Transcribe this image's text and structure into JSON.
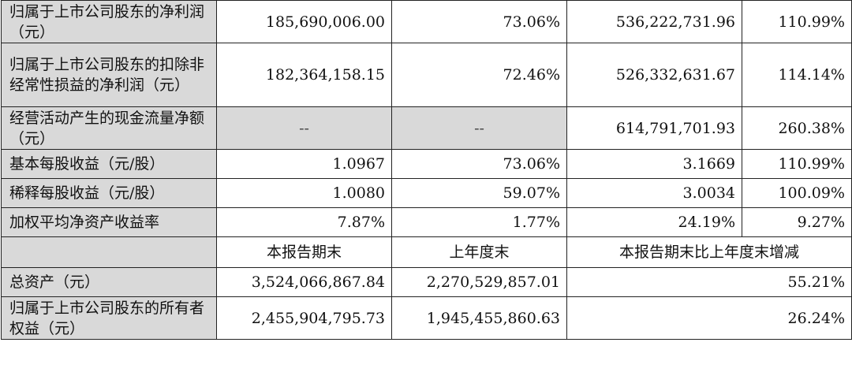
{
  "rows": [
    {
      "label": "归属于上市公司股东的净利润（元）",
      "v1": "185,690,006.00",
      "v2": "73.06%",
      "v3": "536,222,731.96",
      "v4": "110.99%"
    },
    {
      "label": "归属于上市公司股东的扣除非经常性损益的净利润（元）",
      "v1": "182,364,158.15",
      "v2": "72.46%",
      "v3": "526,332,631.67",
      "v4": "114.14%"
    },
    {
      "label": "经营活动产生的现金流量净额（元）",
      "v1": "--",
      "v2": "--",
      "v3": "614,791,701.93",
      "v4": "260.38%"
    },
    {
      "label": "基本每股收益（元/股）",
      "v1": "1.0967",
      "v2": "73.06%",
      "v3": "3.1669",
      "v4": "110.99%"
    },
    {
      "label": "稀释每股收益（元/股）",
      "v1": "1.0080",
      "v2": "59.07%",
      "v3": "3.0034",
      "v4": "100.09%"
    },
    {
      "label": "加权平均净资产收益率",
      "v1": "7.87%",
      "v2": "1.77%",
      "v3": "24.19%",
      "v4": "9.27%"
    }
  ],
  "subheader": {
    "c1": "本报告期末",
    "c2": "上年度末",
    "c3": "本报告期末比上年度末增减"
  },
  "rows2": [
    {
      "label": "总资产（元）",
      "v1": "3,524,066,867.84",
      "v2": "2,270,529,857.01",
      "v3": "55.21%"
    },
    {
      "label": "归属于上市公司股东的所有者权益（元）",
      "v1": "2,455,904,795.73",
      "v2": "1,945,455,860.63",
      "v3": "26.24%"
    }
  ]
}
